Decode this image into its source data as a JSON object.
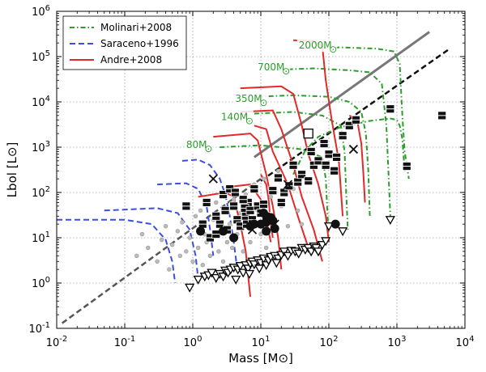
{
  "chart_data": {
    "type": "scatter",
    "xlabel": "Mass [M⊙]",
    "ylabel": "Lbol [L⊙]",
    "x_scale": "log",
    "y_scale": "log",
    "xlim": [
      0.01,
      10000
    ],
    "ylim": [
      0.1,
      1000000
    ],
    "x_ticks": [
      {
        "value": 0.01,
        "base": "10",
        "exp": "-2"
      },
      {
        "value": 0.1,
        "base": "10",
        "exp": "-1"
      },
      {
        "value": 1,
        "base": "10",
        "exp": "0"
      },
      {
        "value": 10,
        "base": "10",
        "exp": "1"
      },
      {
        "value": 100,
        "base": "10",
        "exp": "2"
      },
      {
        "value": 1000,
        "base": "10",
        "exp": "3"
      },
      {
        "value": 10000,
        "base": "10",
        "exp": "4"
      }
    ],
    "y_ticks": [
      {
        "value": 0.1,
        "base": "10",
        "exp": "-1"
      },
      {
        "value": 1,
        "base": "10",
        "exp": "0"
      },
      {
        "value": 10,
        "base": "10",
        "exp": "1"
      },
      {
        "value": 100,
        "base": "10",
        "exp": "2"
      },
      {
        "value": 1000,
        "base": "10",
        "exp": "3"
      },
      {
        "value": 10000,
        "base": "10",
        "exp": "4"
      },
      {
        "value": 100000,
        "base": "10",
        "exp": "5"
      },
      {
        "value": 1000000,
        "base": "10",
        "exp": "6"
      }
    ],
    "grid": true,
    "legend_position": "top-left",
    "legend": [
      {
        "label": "Molinari+2008",
        "style": "dash-dot",
        "color": "#2a9d2a"
      },
      {
        "label": "Saraceno+1996",
        "style": "dashed",
        "color": "#3a4fe0"
      },
      {
        "label": "Andre+2008",
        "style": "solid",
        "color": "#e02a2a"
      }
    ],
    "mass_labels": [
      {
        "text": "2000M",
        "x": 36,
        "y": 150000
      },
      {
        "text": "700M",
        "x": 9,
        "y": 50000
      },
      {
        "text": "350M",
        "x": 4.2,
        "y": 10000
      },
      {
        "text": "140M",
        "x": 2.6,
        "y": 4000
      },
      {
        "text": "80M",
        "x": 0.8,
        "y": 950
      }
    ],
    "lines": [
      {
        "name": "",
        "style": "solid",
        "color": "#777777",
        "points": [
          [
            8,
            600
          ],
          [
            3000,
            350000
          ]
        ]
      },
      {
        "name": "",
        "style": "dashed",
        "color": "#555555",
        "points": [
          [
            0.012,
            0.13
          ],
          [
            10,
            200
          ]
        ]
      },
      {
        "name": "",
        "style": "dashed",
        "color": "#111111",
        "points": [
          [
            10,
            180
          ],
          [
            6000,
            150000
          ]
        ]
      }
    ],
    "molinari_tracks": [
      [
        [
          30,
          250
        ],
        [
          45,
          850
        ],
        [
          70,
          1700
        ],
        [
          150,
          2800
        ],
        [
          400,
          3800
        ],
        [
          800,
          4300
        ],
        [
          1000,
          4000
        ],
        [
          1100,
          3000
        ],
        [
          1200,
          1500
        ],
        [
          1300,
          300
        ]
      ],
      [
        [
          40,
          150000
        ],
        [
          150,
          160000
        ],
        [
          500,
          150000
        ],
        [
          900,
          130000
        ],
        [
          1100,
          70000
        ],
        [
          1200,
          5000
        ],
        [
          1300,
          800
        ],
        [
          1500,
          200
        ]
      ],
      [
        [
          12,
          50000
        ],
        [
          60,
          55000
        ],
        [
          200,
          50000
        ],
        [
          400,
          45000
        ],
        [
          600,
          25000
        ],
        [
          700,
          3000
        ],
        [
          750,
          300
        ],
        [
          800,
          30
        ]
      ],
      [
        [
          9,
          13000
        ],
        [
          30,
          14000
        ],
        [
          100,
          13000
        ],
        [
          200,
          10000
        ],
        [
          300,
          6000
        ],
        [
          350,
          2000
        ],
        [
          380,
          300
        ],
        [
          400,
          30
        ]
      ],
      [
        [
          8,
          5500
        ],
        [
          30,
          6000
        ],
        [
          80,
          5000
        ],
        [
          150,
          3000
        ],
        [
          170,
          800
        ],
        [
          180,
          100
        ],
        [
          190,
          15
        ]
      ],
      [
        [
          2.5,
          1000
        ],
        [
          10,
          1100
        ],
        [
          40,
          900
        ],
        [
          80,
          600
        ],
        [
          90,
          200
        ],
        [
          95,
          40
        ],
        [
          100,
          8
        ]
      ]
    ],
    "saraceno_tracks": [
      [
        [
          0.7,
          500
        ],
        [
          1.2,
          530
        ],
        [
          1.8,
          400
        ],
        [
          2.5,
          200
        ],
        [
          3,
          90
        ],
        [
          3.5,
          30
        ],
        [
          4,
          8
        ],
        [
          4.5,
          2
        ]
      ],
      [
        [
          0.3,
          150
        ],
        [
          0.8,
          160
        ],
        [
          1.2,
          120
        ],
        [
          1.6,
          50
        ],
        [
          1.8,
          15
        ],
        [
          2,
          4
        ]
      ],
      [
        [
          0.05,
          40
        ],
        [
          0.3,
          45
        ],
        [
          0.6,
          35
        ],
        [
          0.9,
          15
        ],
        [
          1.1,
          4
        ],
        [
          1.2,
          1.2
        ]
      ],
      [
        [
          0.01,
          25
        ],
        [
          0.1,
          25
        ],
        [
          0.25,
          20
        ],
        [
          0.4,
          9
        ],
        [
          0.5,
          3
        ],
        [
          0.55,
          1
        ]
      ]
    ],
    "andre_tracks": [
      [
        [
          30,
          230000
        ],
        [
          60,
          220000
        ],
        [
          80,
          170000
        ],
        [
          90,
          30000
        ],
        [
          110,
          4000
        ],
        [
          140,
          500
        ],
        [
          160,
          30
        ]
      ],
      [
        [
          5,
          20000
        ],
        [
          20,
          22000
        ],
        [
          30,
          15000
        ],
        [
          40,
          3000
        ],
        [
          50,
          700
        ],
        [
          70,
          150
        ],
        [
          90,
          30
        ],
        [
          100,
          8
        ]
      ],
      [
        [
          5,
          6000
        ],
        [
          15,
          6500
        ],
        [
          20,
          2500
        ],
        [
          30,
          400
        ],
        [
          40,
          80
        ],
        [
          60,
          15
        ],
        [
          80,
          3
        ]
      ],
      [
        [
          8,
          3000
        ],
        [
          12,
          2500
        ],
        [
          15,
          800
        ],
        [
          25,
          150
        ],
        [
          35,
          30
        ],
        [
          50,
          6
        ]
      ],
      [
        [
          2,
          1700
        ],
        [
          7,
          2000
        ],
        [
          9,
          1400
        ],
        [
          12,
          250
        ],
        [
          15,
          50
        ],
        [
          18,
          10
        ],
        [
          20,
          2
        ]
      ],
      [
        [
          1.2,
          80
        ],
        [
          3,
          100
        ],
        [
          4,
          80
        ],
        [
          5,
          20
        ],
        [
          6,
          5
        ],
        [
          7,
          0.5
        ]
      ],
      [
        [
          3,
          130
        ],
        [
          7,
          150
        ],
        [
          10,
          70
        ],
        [
          12,
          25
        ],
        [
          14,
          8
        ]
      ],
      [
        [
          10,
          250
        ],
        [
          12,
          150
        ],
        [
          13,
          70
        ],
        [
          14,
          20
        ],
        [
          15,
          10
        ]
      ],
      [
        [
          200,
          5000
        ],
        [
          260,
          4000
        ],
        [
          300,
          1200
        ],
        [
          320,
          300
        ],
        [
          340,
          60
        ]
      ]
    ],
    "squares": [
      [
        0.8,
        50
      ],
      [
        1.4,
        20
      ],
      [
        1.6,
        60
      ],
      [
        1.8,
        10
      ],
      [
        2.5,
        20
      ],
      [
        2.2,
        30
      ],
      [
        2.8,
        90
      ],
      [
        3,
        40
      ],
      [
        3.5,
        120
      ],
      [
        4,
        50
      ],
      [
        2.2,
        12
      ],
      [
        3.2,
        15
      ],
      [
        4.5,
        25
      ],
      [
        5,
        18
      ],
      [
        6,
        30
      ],
      [
        6.5,
        60
      ],
      [
        5.5,
        70
      ],
      [
        5.8,
        45
      ],
      [
        6.2,
        20
      ],
      [
        7,
        40
      ],
      [
        7.5,
        25
      ],
      [
        8,
        120
      ],
      [
        9,
        50
      ],
      [
        10,
        35
      ],
      [
        4.2,
        100
      ],
      [
        12,
        30
      ],
      [
        11,
        55
      ],
      [
        15,
        110
      ],
      [
        18,
        210
      ],
      [
        20,
        60
      ],
      [
        22,
        100
      ],
      [
        26,
        140
      ],
      [
        30,
        400
      ],
      [
        35,
        170
      ],
      [
        40,
        250
      ],
      [
        50,
        180
      ],
      [
        55,
        800
      ],
      [
        60,
        400
      ],
      [
        70,
        500
      ],
      [
        85,
        1200
      ],
      [
        90,
        400
      ],
      [
        100,
        700
      ],
      [
        120,
        300
      ],
      [
        130,
        600
      ],
      [
        160,
        1800
      ],
      [
        200,
        3000
      ],
      [
        250,
        4000
      ],
      [
        800,
        7000
      ],
      [
        1400,
        380
      ],
      [
        4600,
        5000
      ]
    ],
    "circles": [
      [
        1.3,
        14
      ],
      [
        2.8,
        14
      ],
      [
        4,
        10
      ],
      [
        7,
        18
      ],
      [
        8,
        20
      ],
      [
        10,
        20
      ],
      [
        11,
        35
      ],
      [
        12,
        22
      ],
      [
        14,
        28
      ],
      [
        15,
        24
      ],
      [
        16,
        16
      ],
      [
        12,
        14
      ],
      [
        125,
        20
      ]
    ],
    "crosses": [
      [
        2,
        200
      ],
      [
        7.5,
        15
      ],
      [
        16,
        20
      ],
      [
        25,
        150
      ],
      [
        230,
        900
      ]
    ],
    "open_squares": [
      [
        50,
        2000
      ]
    ],
    "triangles": [
      [
        0.9,
        0.8
      ],
      [
        1.2,
        1.2
      ],
      [
        1.5,
        1.4
      ],
      [
        1.7,
        1.5
      ],
      [
        1.9,
        1.7
      ],
      [
        2.2,
        1.3
      ],
      [
        2.5,
        1.6
      ],
      [
        2.8,
        1.4
      ],
      [
        3,
        1.9
      ],
      [
        3.3,
        1.7
      ],
      [
        3.6,
        2
      ],
      [
        4,
        2.2
      ],
      [
        4.3,
        1.2
      ],
      [
        4.6,
        2
      ],
      [
        5,
        2.4
      ],
      [
        5.5,
        1.7
      ],
      [
        6,
        2.5
      ],
      [
        6.5,
        2.1
      ],
      [
        7,
        2.7
      ],
      [
        7.5,
        3
      ],
      [
        8,
        2.6
      ],
      [
        9,
        3.2
      ],
      [
        10,
        2.8
      ],
      [
        11,
        3.5
      ],
      [
        12,
        2.5
      ],
      [
        13,
        3.2
      ],
      [
        14,
        3.8
      ],
      [
        16,
        4
      ],
      [
        18,
        3.5
      ],
      [
        20,
        4.2
      ],
      [
        22,
        5
      ],
      [
        25,
        4
      ],
      [
        28,
        5.2
      ],
      [
        32,
        5
      ],
      [
        36,
        4.5
      ],
      [
        40,
        6
      ],
      [
        45,
        5.5
      ],
      [
        50,
        6
      ],
      [
        55,
        5
      ],
      [
        60,
        6.5
      ],
      [
        65,
        6
      ],
      [
        70,
        5
      ],
      [
        80,
        7
      ],
      [
        90,
        8.5
      ],
      [
        160,
        14
      ],
      [
        800,
        25
      ],
      [
        100,
        18
      ],
      [
        6.8,
        1.6
      ],
      [
        9.5,
        2.1
      ],
      [
        17,
        2.8
      ]
    ],
    "grey_dots": [
      [
        0.15,
        4
      ],
      [
        0.18,
        12
      ],
      [
        0.22,
        6
      ],
      [
        0.3,
        3
      ],
      [
        0.35,
        9
      ],
      [
        0.4,
        18
      ],
      [
        0.45,
        2
      ],
      [
        0.5,
        7
      ],
      [
        0.6,
        14
      ],
      [
        0.65,
        4
      ],
      [
        0.7,
        22
      ],
      [
        0.8,
        5
      ],
      [
        0.9,
        10
      ],
      [
        1,
        3
      ],
      [
        1.1,
        30
      ],
      [
        1.2,
        6
      ],
      [
        1.3,
        40
      ],
      [
        1.4,
        2.5
      ],
      [
        1.5,
        12
      ],
      [
        1.6,
        8
      ],
      [
        1.8,
        4
      ],
      [
        2,
        25
      ],
      [
        2.2,
        60
      ],
      [
        2.4,
        5
      ],
      [
        2.6,
        15
      ],
      [
        2.8,
        3
      ],
      [
        3,
        45
      ],
      [
        3.2,
        8
      ],
      [
        3.5,
        20
      ],
      [
        3.8,
        6
      ],
      [
        4,
        70
      ],
      [
        4.5,
        12
      ],
      [
        5,
        35
      ],
      [
        5.5,
        5
      ],
      [
        6,
        90
      ],
      [
        6.5,
        18
      ],
      [
        7,
        8
      ],
      [
        8,
        150
      ],
      [
        9,
        40
      ],
      [
        10,
        12
      ],
      [
        11,
        200
      ],
      [
        12,
        6
      ],
      [
        14,
        80
      ],
      [
        16,
        25
      ],
      [
        18,
        300
      ],
      [
        20,
        50
      ],
      [
        25,
        18
      ],
      [
        30,
        120
      ],
      [
        35,
        40
      ],
      [
        40,
        20
      ]
    ]
  }
}
